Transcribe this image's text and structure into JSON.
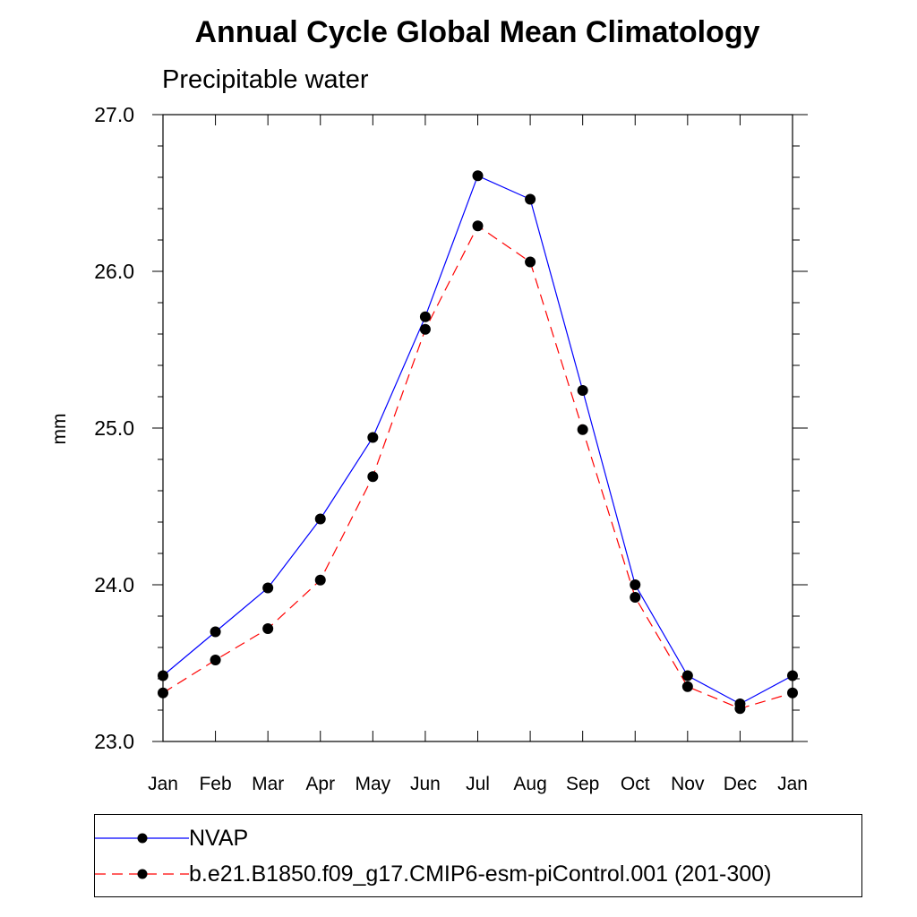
{
  "chart_data": {
    "type": "line",
    "title": "Annual Cycle Global Mean Climatology",
    "subtitle": "Precipitable water",
    "xlabel": "",
    "ylabel": "mm",
    "categories": [
      "Jan",
      "Feb",
      "Mar",
      "Apr",
      "May",
      "Jun",
      "Jul",
      "Aug",
      "Sep",
      "Oct",
      "Nov",
      "Dec",
      "Jan"
    ],
    "ylim": [
      23.0,
      27.0
    ],
    "yticks": [
      "23.0",
      "24.0",
      "25.0",
      "26.0",
      "27.0"
    ],
    "grid": false,
    "legend_position": "bottom",
    "series": [
      {
        "name": "NVAP",
        "color": "#0000ff",
        "dash": "solid",
        "values": [
          23.42,
          23.7,
          23.98,
          24.42,
          24.94,
          25.71,
          26.61,
          26.46,
          25.24,
          24.0,
          23.42,
          23.24,
          23.42
        ]
      },
      {
        "name": "b.e21.B1850.f09_g17.CMIP6-esm-piControl.001 (201-300)",
        "color": "#ff0000",
        "dash": "dashed",
        "values": [
          23.31,
          23.52,
          23.72,
          24.03,
          24.69,
          25.63,
          26.29,
          26.06,
          24.99,
          23.92,
          23.35,
          23.21,
          23.31
        ]
      }
    ]
  }
}
